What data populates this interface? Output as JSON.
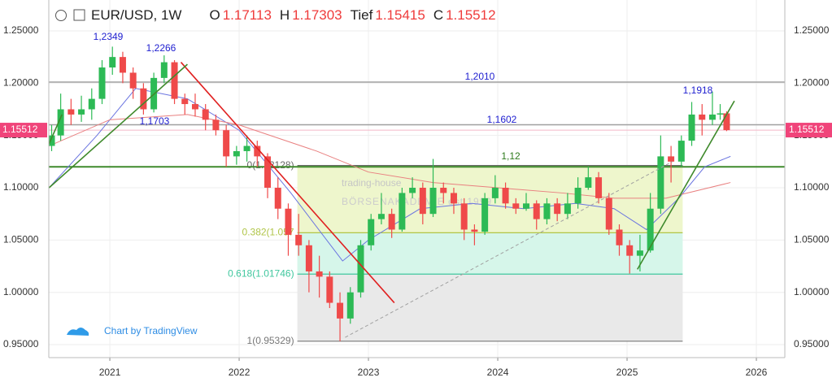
{
  "header": {
    "symbol": "EUR/USD, 1W",
    "ohlc": [
      {
        "key": "O",
        "value": "1.17113"
      },
      {
        "key": "H",
        "value": "1.17303"
      },
      {
        "key": "Tief",
        "value": "1.15415"
      },
      {
        "key": "C",
        "value": "1.15512"
      }
    ]
  },
  "watermark": [
    "trading-house",
    "BÖRSENAKADEMIE est 1999"
  ],
  "credit": "Chart by TradingView",
  "chart_data": {
    "type": "candlestick",
    "up_color": "#2dba55",
    "down_color": "#ef4a4a",
    "xlim": [
      2020.528,
      2026.22
    ],
    "xticks": [
      2021,
      2022,
      2023,
      2024,
      2025,
      2026
    ],
    "ylim": [
      0.9376,
      1.2795
    ],
    "yticks": [
      {
        "value": 0.95,
        "label": "0.95000"
      },
      {
        "value": 1.0,
        "label": "1.00000"
      },
      {
        "value": 1.05,
        "label": "1.05000"
      },
      {
        "value": 1.1,
        "label": "1.10000"
      },
      {
        "value": 1.15,
        "label": "1.15000"
      },
      {
        "value": 1.2,
        "label": "1.20000"
      },
      {
        "value": 1.25,
        "label": "1.25000"
      }
    ],
    "grid": true,
    "last_price": {
      "value": 1.15512,
      "label": "1.15512",
      "color": "#f0447a"
    },
    "candles": [
      [
        2020.55,
        1.14,
        1.16,
        1.135,
        1.15
      ],
      [
        2020.62,
        1.15,
        1.19,
        1.145,
        1.175
      ],
      [
        2020.7,
        1.175,
        1.185,
        1.16,
        1.17
      ],
      [
        2020.78,
        1.17,
        1.188,
        1.163,
        1.175
      ],
      [
        2020.86,
        1.175,
        1.195,
        1.165,
        1.185
      ],
      [
        2020.94,
        1.185,
        1.222,
        1.18,
        1.215
      ],
      [
        2021.02,
        1.215,
        1.2349,
        1.208,
        1.225
      ],
      [
        2021.1,
        1.225,
        1.23,
        1.2,
        1.21
      ],
      [
        2021.18,
        1.21,
        1.215,
        1.185,
        1.195
      ],
      [
        2021.26,
        1.195,
        1.2,
        1.17,
        1.175
      ],
      [
        2021.34,
        1.175,
        1.21,
        1.172,
        1.205
      ],
      [
        2021.42,
        1.205,
        1.2266,
        1.2,
        1.22
      ],
      [
        2021.5,
        1.22,
        1.222,
        1.18,
        1.185
      ],
      [
        2021.58,
        1.185,
        1.19,
        1.17,
        1.18
      ],
      [
        2021.66,
        1.18,
        1.19,
        1.168,
        1.175
      ],
      [
        2021.74,
        1.175,
        1.18,
        1.155,
        1.165
      ],
      [
        2021.82,
        1.165,
        1.17,
        1.15,
        1.155
      ],
      [
        2021.9,
        1.155,
        1.16,
        1.12,
        1.13
      ],
      [
        2021.98,
        1.13,
        1.14,
        1.122,
        1.135
      ],
      [
        2022.06,
        1.135,
        1.15,
        1.125,
        1.14
      ],
      [
        2022.14,
        1.14,
        1.145,
        1.12,
        1.13
      ],
      [
        2022.22,
        1.13,
        1.133,
        1.09,
        1.1
      ],
      [
        2022.3,
        1.1,
        1.11,
        1.07,
        1.08
      ],
      [
        2022.38,
        1.08,
        1.085,
        1.035,
        1.055
      ],
      [
        2022.46,
        1.055,
        1.075,
        1.035,
        1.045
      ],
      [
        2022.54,
        1.045,
        1.05,
        1.0,
        1.02
      ],
      [
        2022.62,
        1.02,
        1.035,
        0.995,
        1.015
      ],
      [
        2022.7,
        1.015,
        1.02,
        0.985,
        0.99
      ],
      [
        2022.78,
        0.99,
        1.0,
        0.95329,
        0.975
      ],
      [
        2022.86,
        0.975,
        1.005,
        0.97,
        1.0
      ],
      [
        2022.94,
        1.0,
        1.05,
        0.995,
        1.045
      ],
      [
        2023.02,
        1.045,
        1.075,
        1.04,
        1.07
      ],
      [
        2023.1,
        1.07,
        1.095,
        1.065,
        1.075
      ],
      [
        2023.18,
        1.075,
        1.08,
        1.052,
        1.06
      ],
      [
        2023.26,
        1.06,
        1.1,
        1.058,
        1.095
      ],
      [
        2023.34,
        1.095,
        1.11,
        1.09,
        1.1
      ],
      [
        2023.42,
        1.1,
        1.105,
        1.065,
        1.075
      ],
      [
        2023.5,
        1.075,
        1.12755,
        1.072,
        1.1
      ],
      [
        2023.58,
        1.1,
        1.105,
        1.085,
        1.095
      ],
      [
        2023.66,
        1.095,
        1.1,
        1.075,
        1.085
      ],
      [
        2023.74,
        1.085,
        1.09,
        1.05,
        1.06
      ],
      [
        2023.82,
        1.06,
        1.065,
        1.045,
        1.058
      ],
      [
        2023.9,
        1.058,
        1.095,
        1.055,
        1.09
      ],
      [
        2023.98,
        1.09,
        1.112,
        1.085,
        1.1
      ],
      [
        2024.06,
        1.1,
        1.105,
        1.08,
        1.085
      ],
      [
        2024.14,
        1.085,
        1.09,
        1.075,
        1.08
      ],
      [
        2024.22,
        1.08,
        1.095,
        1.078,
        1.085
      ],
      [
        2024.3,
        1.085,
        1.088,
        1.06,
        1.07
      ],
      [
        2024.38,
        1.07,
        1.09,
        1.065,
        1.085
      ],
      [
        2024.46,
        1.085,
        1.09,
        1.068,
        1.075
      ],
      [
        2024.54,
        1.075,
        1.095,
        1.07,
        1.085
      ],
      [
        2024.62,
        1.085,
        1.11,
        1.08,
        1.1
      ],
      [
        2024.7,
        1.1,
        1.12,
        1.098,
        1.11
      ],
      [
        2024.78,
        1.11,
        1.115,
        1.085,
        1.09
      ],
      [
        2024.86,
        1.09,
        1.095,
        1.055,
        1.06
      ],
      [
        2024.94,
        1.06,
        1.065,
        1.035,
        1.045
      ],
      [
        2025.02,
        1.045,
        1.05,
        1.018,
        1.035
      ],
      [
        2025.1,
        1.035,
        1.055,
        1.02,
        1.04
      ],
      [
        2025.18,
        1.04,
        1.095,
        1.038,
        1.08
      ],
      [
        2025.26,
        1.08,
        1.15,
        1.075,
        1.13
      ],
      [
        2025.34,
        1.13,
        1.14,
        1.105,
        1.125
      ],
      [
        2025.42,
        1.125,
        1.15,
        1.12,
        1.145
      ],
      [
        2025.5,
        1.145,
        1.182,
        1.14,
        1.17
      ],
      [
        2025.58,
        1.17,
        1.18,
        1.15,
        1.165
      ],
      [
        2025.66,
        1.165,
        1.1918,
        1.16,
        1.17
      ],
      [
        2025.72,
        1.17,
        1.18,
        1.165,
        1.17113
      ],
      [
        2025.77,
        1.17113,
        1.17303,
        1.15415,
        1.15512
      ]
    ],
    "moving_averages": [
      {
        "color": "#6a74e0",
        "x": [
          2020.53,
          2020.9,
          2021.2,
          2021.6,
          2022.0,
          2022.4,
          2022.8,
          2023.0,
          2023.4,
          2023.8,
          2024.2,
          2024.6,
          2024.9,
          2025.15,
          2025.4,
          2025.6,
          2025.8
        ],
        "values": [
          1.1,
          1.15,
          1.195,
          1.185,
          1.155,
          1.095,
          1.03,
          1.05,
          1.08,
          1.085,
          1.08,
          1.085,
          1.08,
          1.06,
          1.09,
          1.12,
          1.13
        ]
      },
      {
        "color": "#e98080",
        "x": [
          2020.53,
          2021.0,
          2021.6,
          2022.0,
          2022.6,
          2023.0,
          2023.5,
          2024.0,
          2024.5,
          2024.9,
          2025.3,
          2025.8
        ],
        "values": [
          1.14,
          1.165,
          1.17,
          1.16,
          1.135,
          1.115,
          1.105,
          1.1,
          1.095,
          1.09,
          1.09,
          1.105
        ]
      }
    ],
    "levels": [
      {
        "value": 1.201,
        "color": "#a0a0a0",
        "width": 1.5
      },
      {
        "value": 1.1602,
        "color": "#a0a0a0",
        "width": 1.5
      },
      {
        "value": 1.12,
        "color": "#3f8a2c",
        "width": 2
      }
    ],
    "trendlines": [
      {
        "color": "#e02020",
        "x": [
          2021.55,
          2023.2
        ],
        "values": [
          1.22,
          0.99
        ]
      },
      {
        "color": "#3f8a2c",
        "x": [
          2020.53,
          2021.6
        ],
        "values": [
          1.1,
          1.218
        ]
      },
      {
        "color": "#3f8a2c",
        "x": [
          2020.53,
          2020.63
        ],
        "values": [
          1.142,
          1.17
        ]
      },
      {
        "color": "#3f8a2c",
        "x": [
          2025.08,
          2025.83
        ],
        "values": [
          1.022,
          1.183
        ]
      },
      {
        "color": "#a0a0a0",
        "dash": true,
        "x": [
          2022.82,
          2025.35
        ],
        "values": [
          0.957,
          1.125
        ]
      }
    ],
    "fib": {
      "x": [
        2022.45,
        2025.43
      ],
      "levels": [
        {
          "value": 1.12128,
          "label": "0(1.12128)",
          "color": "#666666",
          "fill": "#eef6cc"
        },
        {
          "value": 1.057,
          "label": "0.382(1.057",
          "color": "#b0c548",
          "fill": "#d6f6ea"
        },
        {
          "value": 1.01746,
          "label": "0.618(1.01746)",
          "color": "#40c79e",
          "fill": "#e9e9e9"
        },
        {
          "value": 0.95329,
          "label": "1(0.95329)",
          "color": "#777777"
        }
      ]
    },
    "annotations": [
      {
        "text": "1,2349",
        "color": "#2020d0"
      },
      {
        "text": "1,2266",
        "color": "#2020d0"
      },
      {
        "text": "1,1703",
        "color": "#2020d0"
      },
      {
        "text": "1,2010",
        "color": "#2020d0"
      },
      {
        "text": "1,1602",
        "color": "#2020d0"
      },
      {
        "text": "1,1918",
        "color": "#2020d0"
      },
      {
        "text": "1,12",
        "color": "#2d7a1c"
      }
    ]
  }
}
